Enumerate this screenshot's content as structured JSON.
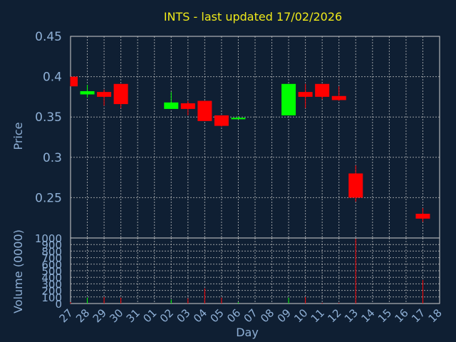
{
  "chart_data": {
    "type": "candlestick",
    "title": "INTS - last updated 17/02/2026",
    "price_axis": {
      "label": "Price",
      "ylim": [
        0.2,
        0.45
      ],
      "ticks": [
        "0.45",
        "0.4",
        "0.35",
        "0.3",
        "0.25"
      ]
    },
    "volume_axis": {
      "label": "Volume (0000)",
      "ylim": [
        0,
        1000
      ],
      "ticks": [
        "1000",
        "900",
        "800",
        "700",
        "600",
        "500",
        "400",
        "300",
        "200",
        "100",
        "0"
      ]
    },
    "x_axis": {
      "label": "Day",
      "categories": [
        "27",
        "28",
        "29",
        "30",
        "31",
        "01",
        "02",
        "03",
        "04",
        "05",
        "06",
        "07",
        "08",
        "09",
        "10",
        "11",
        "12",
        "13",
        "14",
        "15",
        "16",
        "17",
        "18"
      ]
    },
    "grid": true,
    "colors": {
      "up": "#00ff00",
      "down": "#ff0000",
      "background": "#0f1f33",
      "title": "#f0ea1a",
      "labels": "#8fb0d6"
    },
    "candles": [
      {
        "day": "27",
        "open": 0.4,
        "high": 0.4,
        "low": 0.388,
        "close": 0.388
      },
      {
        "day": "28",
        "open": 0.378,
        "high": 0.39,
        "low": 0.374,
        "close": 0.382
      },
      {
        "day": "29",
        "open": 0.381,
        "high": 0.384,
        "low": 0.364,
        "close": 0.375
      },
      {
        "day": "30",
        "open": 0.391,
        "high": 0.391,
        "low": 0.361,
        "close": 0.366
      },
      {
        "day": "02",
        "open": 0.36,
        "high": 0.381,
        "low": 0.36,
        "close": 0.368
      },
      {
        "day": "03",
        "open": 0.367,
        "high": 0.37,
        "low": 0.352,
        "close": 0.36
      },
      {
        "day": "04",
        "open": 0.37,
        "high": 0.37,
        "low": 0.345,
        "close": 0.345
      },
      {
        "day": "05",
        "open": 0.352,
        "high": 0.352,
        "low": 0.338,
        "close": 0.339
      },
      {
        "day": "06",
        "open": 0.348,
        "high": 0.351,
        "low": 0.347,
        "close": 0.349
      },
      {
        "day": "09",
        "open": 0.352,
        "high": 0.391,
        "low": 0.352,
        "close": 0.391
      },
      {
        "day": "10",
        "open": 0.381,
        "high": 0.391,
        "low": 0.361,
        "close": 0.375
      },
      {
        "day": "11",
        "open": 0.391,
        "high": 0.391,
        "low": 0.372,
        "close": 0.375
      },
      {
        "day": "12",
        "open": 0.376,
        "high": 0.388,
        "low": 0.37,
        "close": 0.371
      },
      {
        "day": "13",
        "open": 0.28,
        "high": 0.29,
        "low": 0.245,
        "close": 0.25
      },
      {
        "day": "17",
        "open": 0.23,
        "high": 0.237,
        "low": 0.22,
        "close": 0.224
      }
    ],
    "volume": [
      {
        "day": "27",
        "value": 20,
        "color": "#ff0000"
      },
      {
        "day": "28",
        "value": 90,
        "color": "#00ff00"
      },
      {
        "day": "29",
        "value": 100,
        "color": "#ff0000"
      },
      {
        "day": "30",
        "value": 90,
        "color": "#ff0000"
      },
      {
        "day": "02",
        "value": 60,
        "color": "#00ff00"
      },
      {
        "day": "03",
        "value": 80,
        "color": "#ff0000"
      },
      {
        "day": "04",
        "value": 230,
        "color": "#ff0000"
      },
      {
        "day": "05",
        "value": 90,
        "color": "#ff0000"
      },
      {
        "day": "06",
        "value": 20,
        "color": "#00ff00"
      },
      {
        "day": "09",
        "value": 90,
        "color": "#00ff00"
      },
      {
        "day": "10",
        "value": 100,
        "color": "#ff0000"
      },
      {
        "day": "11",
        "value": 10,
        "color": "#ff0000"
      },
      {
        "day": "12",
        "value": 10,
        "color": "#ff0000"
      },
      {
        "day": "13",
        "value": 990,
        "color": "#ff0000"
      },
      {
        "day": "17",
        "value": 360,
        "color": "#ff0000"
      }
    ]
  }
}
